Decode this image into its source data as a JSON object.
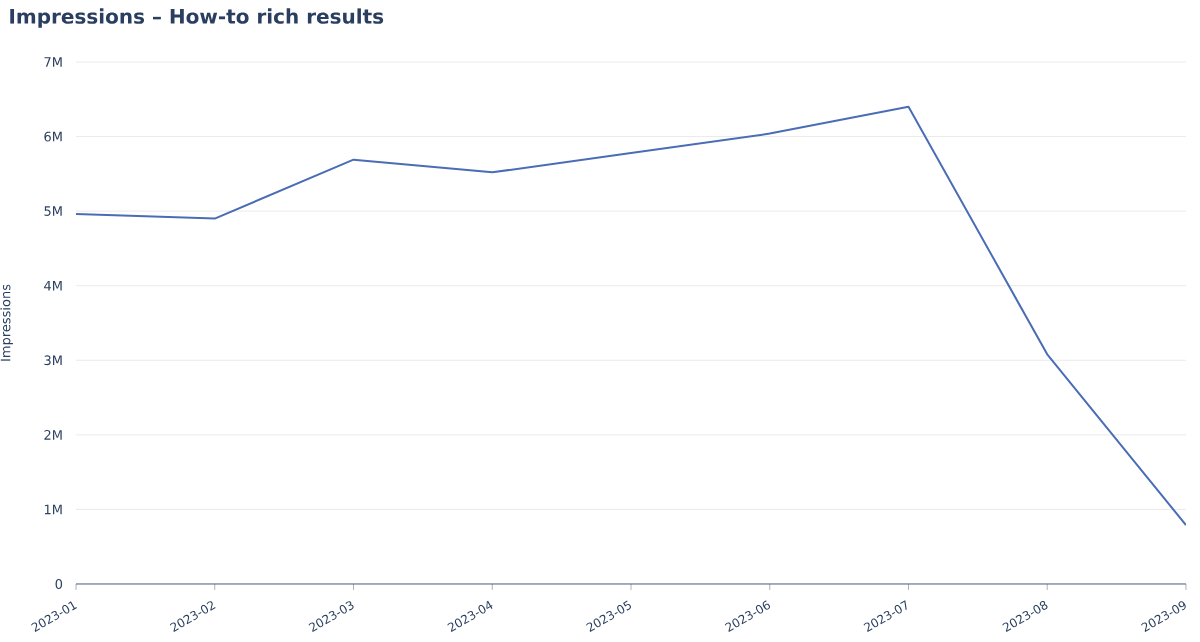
{
  "chart_data": {
    "type": "line",
    "title": "Impressions – How-to rich results",
    "ylabel": "Impressions",
    "categories": [
      "2023-01",
      "2023-02",
      "2023-03",
      "2023-04",
      "2023-05",
      "2023-06",
      "2023-07",
      "2023-08",
      "2023-09"
    ],
    "series": [
      {
        "color": "#4a6db5",
        "values": [
          4960000,
          4900000,
          5690000,
          5520000,
          5780000,
          6040000,
          6400000,
          3080000,
          790000
        ]
      }
    ],
    "ylim": [
      0,
      7000000
    ],
    "yticks": [
      0,
      {
        "value": 1000000,
        "label": "1M"
      },
      {
        "value": 2000000,
        "label": "2M"
      },
      {
        "value": 3000000,
        "label": "3M"
      },
      {
        "value": 4000000,
        "label": "4M"
      },
      {
        "value": 5000000,
        "label": "5M"
      },
      {
        "value": 6000000,
        "label": "6M"
      },
      {
        "value": 7000000,
        "label": "7M"
      }
    ],
    "grid": "y",
    "marker": "none",
    "line_style": "solid"
  }
}
